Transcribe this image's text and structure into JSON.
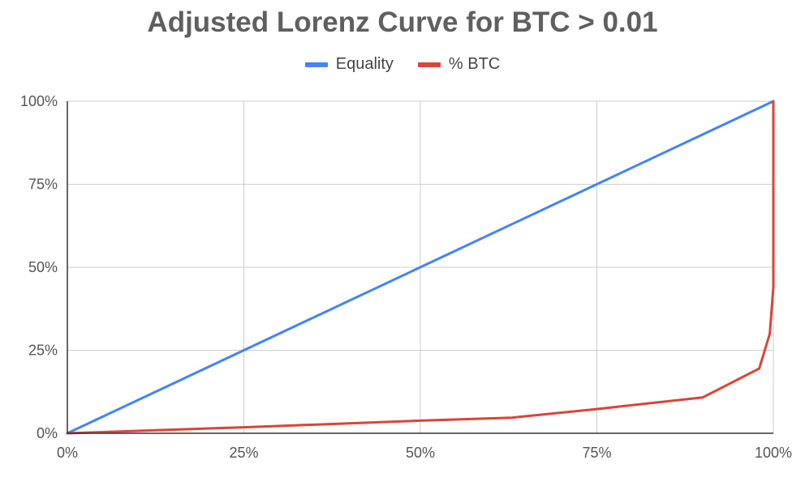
{
  "chart_data": {
    "type": "line",
    "title": "Adjusted Lorenz Curve for BTC > 0.01",
    "xlabel": "",
    "ylabel": "",
    "xlim": [
      0,
      100
    ],
    "ylim": [
      0,
      100
    ],
    "x_ticks": [
      "0%",
      "25%",
      "50%",
      "75%",
      "100%"
    ],
    "y_ticks": [
      "0%",
      "25%",
      "50%",
      "75%",
      "100%"
    ],
    "grid": true,
    "legend_position": "top",
    "series": [
      {
        "name": "Equality",
        "color": "#4285f4",
        "points": [
          [
            0,
            0
          ],
          [
            100,
            100
          ]
        ]
      },
      {
        "name": "% BTC",
        "color": "#db4437",
        "points": [
          [
            0,
            0
          ],
          [
            25,
            1.8
          ],
          [
            50,
            3.8
          ],
          [
            63,
            4.7
          ],
          [
            75,
            7.3
          ],
          [
            90,
            10.8
          ],
          [
            98,
            19.5
          ],
          [
            99.5,
            30
          ],
          [
            100,
            44
          ],
          [
            100,
            100
          ]
        ]
      }
    ]
  }
}
